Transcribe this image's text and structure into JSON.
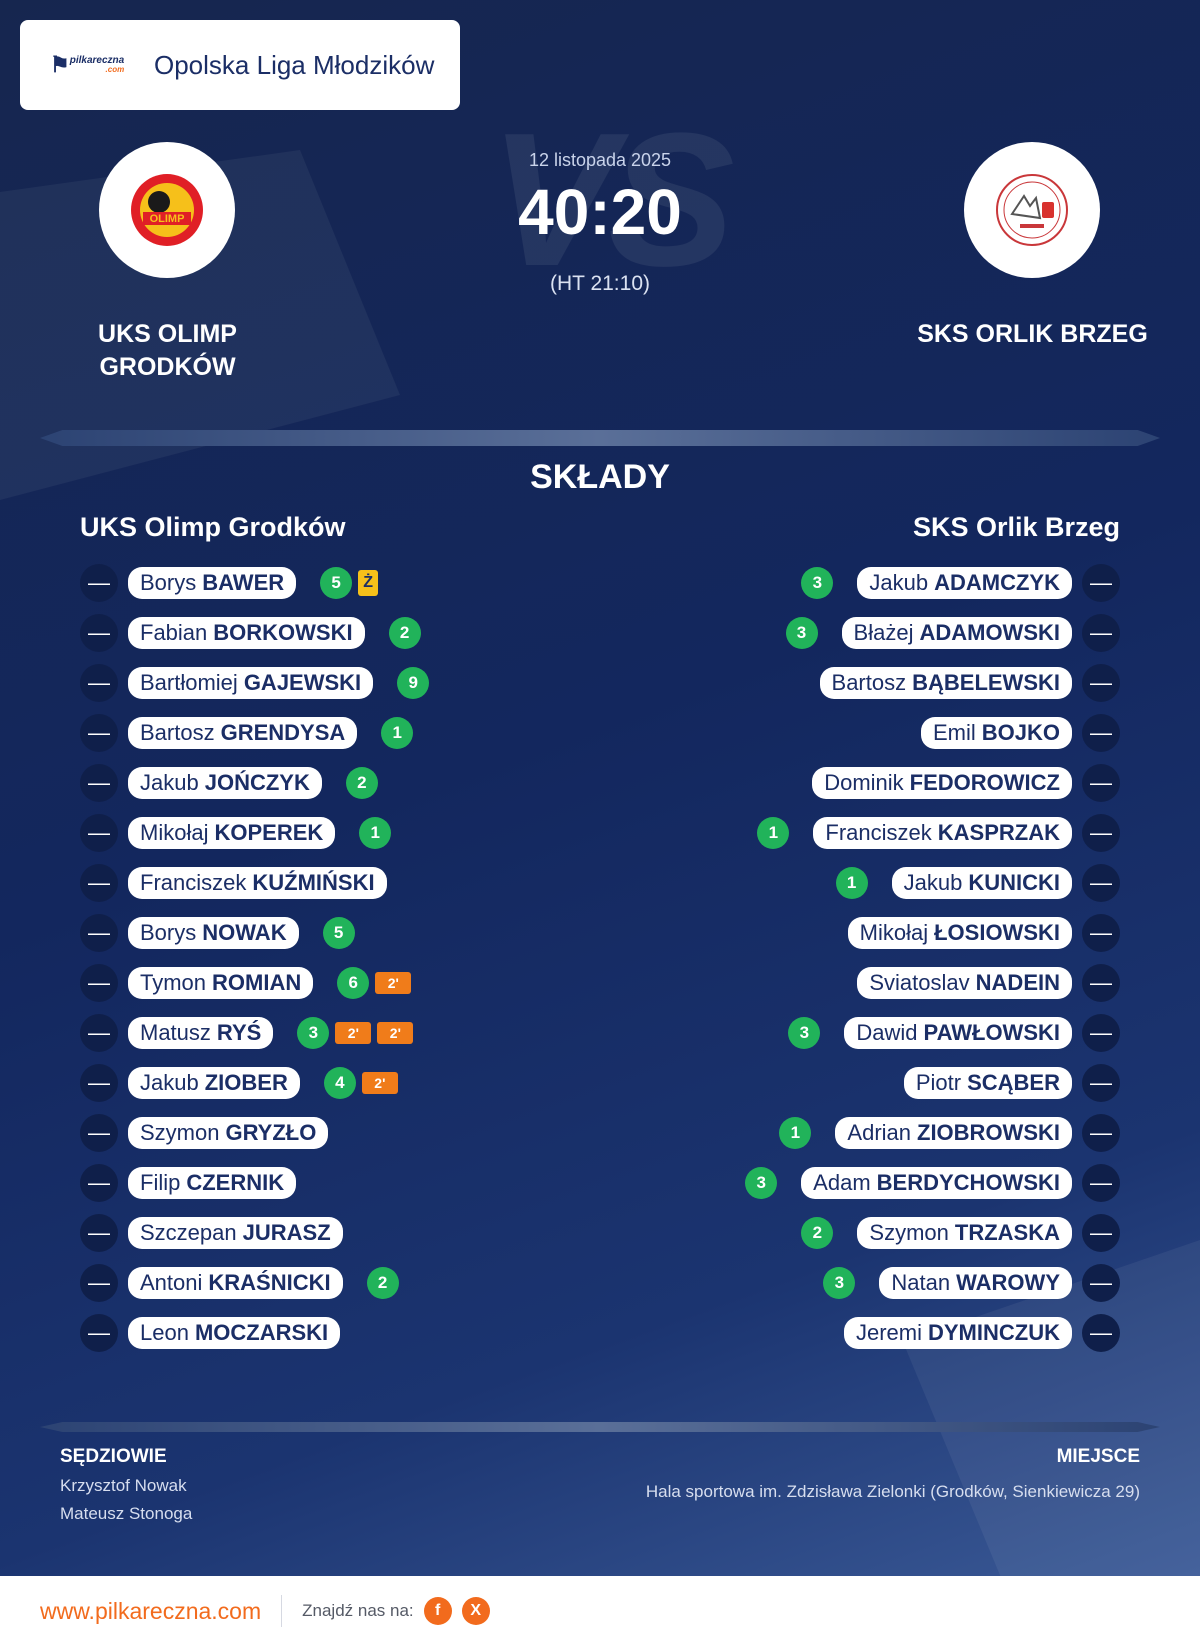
{
  "league": {
    "logo_text": "pilkareczna",
    "logo_sub": ".com",
    "name": "Opolska Liga Młodzików"
  },
  "match": {
    "date": "12 listopada 2025",
    "score": "40:20",
    "halftime": "(HT 21:10)",
    "vs_watermark": "VS",
    "home_team": "UKS OLIMP GRODKÓW",
    "away_team": "SKS ORLIK BRZEG"
  },
  "lineups": {
    "title": "SKŁADY",
    "home": {
      "name": "UKS Olimp Grodków",
      "players": [
        {
          "num": "—",
          "first": "Borys",
          "last": "BAWER",
          "goals": "5",
          "cards": [
            "Ż"
          ]
        },
        {
          "num": "—",
          "first": "Fabian",
          "last": "BORKOWSKI",
          "goals": "2",
          "cards": []
        },
        {
          "num": "—",
          "first": "Bartłomiej",
          "last": "GAJEWSKI",
          "goals": "9",
          "cards": []
        },
        {
          "num": "—",
          "first": "Bartosz",
          "last": "GRENDYSA",
          "goals": "1",
          "cards": []
        },
        {
          "num": "—",
          "first": "Jakub",
          "last": "JOŃCZYK",
          "goals": "2",
          "cards": []
        },
        {
          "num": "—",
          "first": "Mikołaj",
          "last": "KOPEREK",
          "goals": "1",
          "cards": []
        },
        {
          "num": "—",
          "first": "Franciszek",
          "last": "KUŹMIŃSKI",
          "goals": "",
          "cards": []
        },
        {
          "num": "—",
          "first": "Borys",
          "last": "NOWAK",
          "goals": "5",
          "cards": []
        },
        {
          "num": "—",
          "first": "Tymon",
          "last": "ROMIAN",
          "goals": "6",
          "cards": [
            "2'"
          ]
        },
        {
          "num": "—",
          "first": "Matusz",
          "last": "RYŚ",
          "goals": "3",
          "cards": [
            "2'",
            "2'"
          ]
        },
        {
          "num": "—",
          "first": "Jakub",
          "last": "ZIOBER",
          "goals": "4",
          "cards": [
            "2'"
          ]
        },
        {
          "num": "—",
          "first": "Szymon",
          "last": "GRYZŁO",
          "goals": "",
          "cards": []
        },
        {
          "num": "—",
          "first": "Filip",
          "last": "CZERNIK",
          "goals": "",
          "cards": []
        },
        {
          "num": "—",
          "first": "Szczepan",
          "last": "JURASZ",
          "goals": "",
          "cards": []
        },
        {
          "num": "—",
          "first": "Antoni",
          "last": "KRAŚNICKI",
          "goals": "2",
          "cards": []
        },
        {
          "num": "—",
          "first": "Leon",
          "last": "MOCZARSKI",
          "goals": "",
          "cards": []
        }
      ]
    },
    "away": {
      "name": "SKS Orlik Brzeg",
      "players": [
        {
          "num": "—",
          "first": "Jakub",
          "last": "ADAMCZYK",
          "goals": "3",
          "cards": []
        },
        {
          "num": "—",
          "first": "Błażej",
          "last": "ADAMOWSKI",
          "goals": "3",
          "cards": []
        },
        {
          "num": "—",
          "first": "Bartosz",
          "last": "BĄBELEWSKI",
          "goals": "",
          "cards": []
        },
        {
          "num": "—",
          "first": "Emil",
          "last": "BOJKO",
          "goals": "",
          "cards": []
        },
        {
          "num": "—",
          "first": "Dominik",
          "last": "FEDOROWICZ",
          "goals": "",
          "cards": []
        },
        {
          "num": "—",
          "first": "Franciszek",
          "last": "KASPRZAK",
          "goals": "1",
          "cards": []
        },
        {
          "num": "—",
          "first": "Jakub",
          "last": "KUNICKI",
          "goals": "1",
          "cards": []
        },
        {
          "num": "—",
          "first": "Mikołaj",
          "last": "ŁOSIOWSKI",
          "goals": "",
          "cards": []
        },
        {
          "num": "—",
          "first": "Sviatoslav",
          "last": "NADEIN",
          "goals": "",
          "cards": []
        },
        {
          "num": "—",
          "first": "Dawid",
          "last": "PAWŁOWSKI",
          "goals": "3",
          "cards": []
        },
        {
          "num": "—",
          "first": "Piotr",
          "last": "SCĄBER",
          "goals": "",
          "cards": []
        },
        {
          "num": "—",
          "first": "Adrian",
          "last": "ZIOBROWSKI",
          "goals": "1",
          "cards": []
        },
        {
          "num": "—",
          "first": "Adam",
          "last": "BERDYCHOWSKI",
          "goals": "3",
          "cards": []
        },
        {
          "num": "—",
          "first": "Szymon",
          "last": "TRZASKA",
          "goals": "2",
          "cards": []
        },
        {
          "num": "—",
          "first": "Natan",
          "last": "WAROWY",
          "goals": "3",
          "cards": []
        },
        {
          "num": "—",
          "first": "Jeremi",
          "last": "DYMINCZUK",
          "goals": "",
          "cards": []
        }
      ]
    }
  },
  "officials": {
    "referees_title": "SĘDZIOWIE",
    "referees": [
      "Krzysztof Nowak",
      "Mateusz Stonoga"
    ],
    "venue_title": "MIEJSCE",
    "venue": "Hala sportowa im. Zdzisława Zielonki (Grodków, Sienkiewicza 29)"
  },
  "footer": {
    "url": "www.pilkareczna.com",
    "find_us": "Znajdź nas na:",
    "socials": [
      {
        "icon": "facebook-icon",
        "glyph": "f"
      },
      {
        "icon": "x-icon",
        "glyph": "X"
      }
    ]
  },
  "colors": {
    "accent": "#f26b1d",
    "goal": "#21b35a",
    "yellow_card": "#f6c01a",
    "suspension": "#f07c1a",
    "navy": "#1b2e66"
  }
}
